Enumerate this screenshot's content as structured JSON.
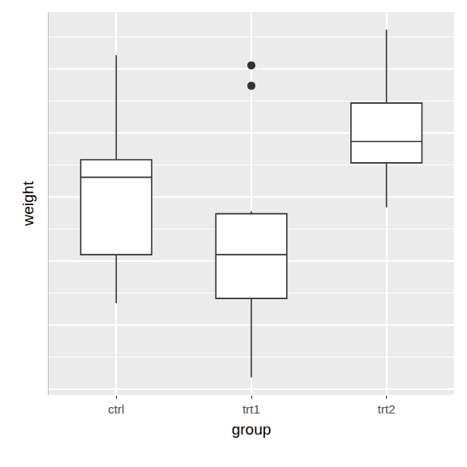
{
  "chart_data": {
    "type": "box",
    "x_label": "group",
    "y_label": "weight",
    "categories": [
      "ctrl",
      "trt1",
      "trt2"
    ],
    "lower_whisker": [
      4.17,
      3.59,
      4.92
    ],
    "q1": [
      4.55,
      4.2075,
      5.2675
    ],
    "median": [
      5.155,
      4.55,
      5.435
    ],
    "q3": [
      5.2925,
      4.87,
      5.735
    ],
    "upper_whisker": [
      6.11,
      4.89,
      6.31
    ],
    "outliers": [
      [],
      [
        5.87,
        6.03
      ],
      []
    ],
    "color": "#ffffff",
    "ylim": [
      3.454,
      6.446
    ],
    "yticks": [
      3.5,
      4,
      4.5,
      5,
      5.5,
      6
    ],
    "grid": true,
    "tick_labels": "x"
  }
}
